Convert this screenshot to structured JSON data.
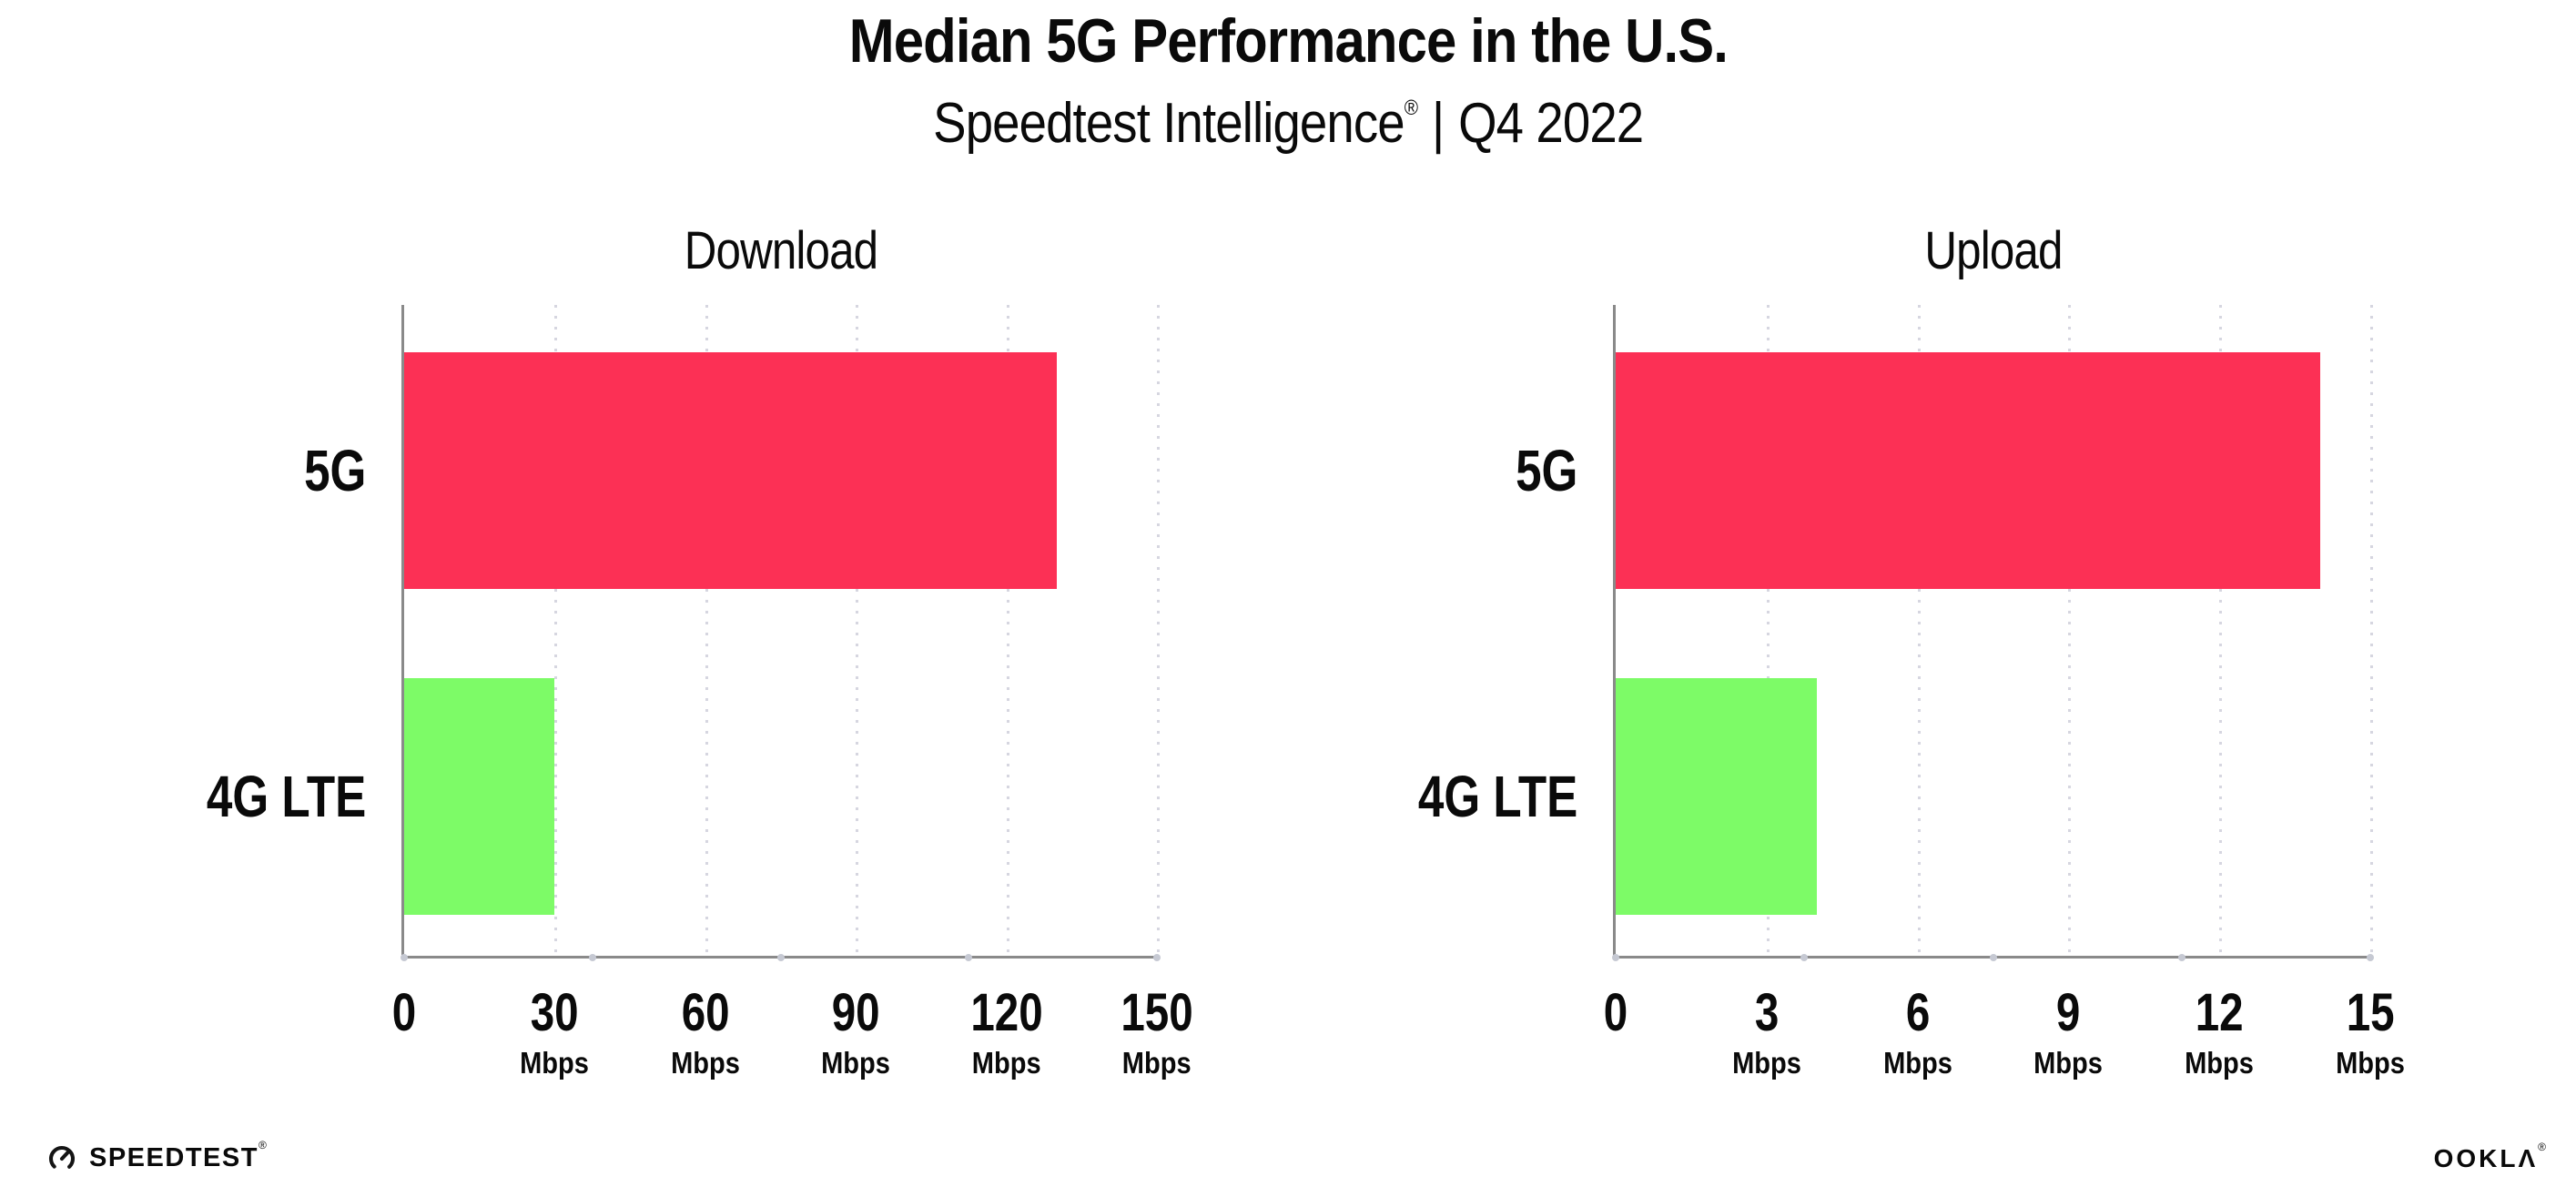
{
  "header": {
    "title": "Median 5G Performance in the U.S.",
    "subtitle_brand": "Speedtest Intelligence",
    "subtitle_reg": "®",
    "subtitle_sep": "|",
    "subtitle_period": "Q4 2022"
  },
  "colors": {
    "bar_5g": "#FC3055",
    "bar_4g_lte": "#7DFB67",
    "axis": "#8a8a8a",
    "gridline": "#d6d6e0",
    "text": "#0a0a0a"
  },
  "chart_data": [
    {
      "type": "bar",
      "orientation": "horizontal",
      "title": "Download",
      "categories": [
        "5G",
        "4G LTE"
      ],
      "values": [
        130,
        30
      ],
      "unit": "Mbps",
      "xlim": [
        0,
        150
      ],
      "grid": "vertical-dotted",
      "bar_colors": [
        "#FC3055",
        "#7DFB67"
      ],
      "xticks": [
        {
          "label": "0",
          "unit": ""
        },
        {
          "label": "30",
          "unit": "Mbps"
        },
        {
          "label": "60",
          "unit": "Mbps"
        },
        {
          "label": "90",
          "unit": "Mbps"
        },
        {
          "label": "120",
          "unit": "Mbps"
        },
        {
          "label": "150",
          "unit": "Mbps"
        }
      ]
    },
    {
      "type": "bar",
      "orientation": "horizontal",
      "title": "Upload",
      "categories": [
        "5G",
        "4G LTE"
      ],
      "values": [
        14,
        4
      ],
      "unit": "Mbps",
      "xlim": [
        0,
        15
      ],
      "grid": "vertical-dotted",
      "bar_colors": [
        "#FC3055",
        "#7DFB67"
      ],
      "xticks": [
        {
          "label": "0",
          "unit": ""
        },
        {
          "label": "3",
          "unit": "Mbps"
        },
        {
          "label": "6",
          "unit": "Mbps"
        },
        {
          "label": "9",
          "unit": "Mbps"
        },
        {
          "label": "12",
          "unit": "Mbps"
        },
        {
          "label": "15",
          "unit": "Mbps"
        }
      ]
    }
  ],
  "footer": {
    "speedtest_label": "SPEEDTEST",
    "speedtest_mark": "®",
    "ookla_label": "OOKLΛ",
    "ookla_mark": "®"
  }
}
